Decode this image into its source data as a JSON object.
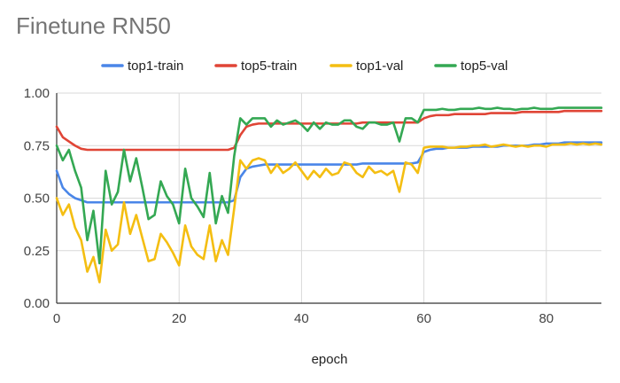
{
  "chart_data": {
    "type": "line",
    "title": "Finetune RN50",
    "xlabel": "epoch",
    "ylabel": "",
    "xlim": [
      0,
      89
    ],
    "ylim": [
      0,
      1
    ],
    "x_ticks": [
      0,
      20,
      40,
      60,
      80
    ],
    "x_tick_labels": [
      "0",
      "20",
      "40",
      "60",
      "80"
    ],
    "y_ticks": [
      0,
      0.25,
      0.5,
      0.75,
      1
    ],
    "y_tick_labels": [
      "0.00",
      "0.25",
      "0.50",
      "0.75",
      "1.00"
    ],
    "grid": true,
    "legend": "top",
    "series": [
      {
        "name": "top1-train",
        "color": "#4a86e8",
        "values": [
          0.63,
          0.55,
          0.52,
          0.5,
          0.49,
          0.48,
          0.48,
          0.48,
          0.48,
          0.48,
          0.48,
          0.48,
          0.48,
          0.48,
          0.48,
          0.48,
          0.48,
          0.48,
          0.48,
          0.48,
          0.48,
          0.48,
          0.48,
          0.48,
          0.48,
          0.48,
          0.48,
          0.48,
          0.48,
          0.49,
          0.6,
          0.64,
          0.65,
          0.655,
          0.66,
          0.66,
          0.66,
          0.66,
          0.66,
          0.66,
          0.66,
          0.66,
          0.66,
          0.66,
          0.66,
          0.66,
          0.66,
          0.66,
          0.66,
          0.66,
          0.665,
          0.665,
          0.665,
          0.665,
          0.665,
          0.665,
          0.665,
          0.665,
          0.665,
          0.67,
          0.72,
          0.73,
          0.735,
          0.735,
          0.74,
          0.74,
          0.74,
          0.74,
          0.745,
          0.745,
          0.745,
          0.745,
          0.745,
          0.75,
          0.75,
          0.75,
          0.75,
          0.75,
          0.755,
          0.755,
          0.76,
          0.76,
          0.76,
          0.765,
          0.765,
          0.765,
          0.765,
          0.765,
          0.765,
          0.765
        ]
      },
      {
        "name": "top5-train",
        "color": "#e04536",
        "values": [
          0.84,
          0.79,
          0.77,
          0.75,
          0.735,
          0.73,
          0.73,
          0.73,
          0.73,
          0.73,
          0.73,
          0.73,
          0.73,
          0.73,
          0.73,
          0.73,
          0.73,
          0.73,
          0.73,
          0.73,
          0.73,
          0.73,
          0.73,
          0.73,
          0.73,
          0.73,
          0.73,
          0.73,
          0.73,
          0.74,
          0.8,
          0.84,
          0.85,
          0.855,
          0.855,
          0.855,
          0.855,
          0.855,
          0.855,
          0.855,
          0.855,
          0.855,
          0.855,
          0.855,
          0.855,
          0.855,
          0.855,
          0.855,
          0.855,
          0.855,
          0.86,
          0.86,
          0.86,
          0.86,
          0.86,
          0.86,
          0.86,
          0.86,
          0.86,
          0.86,
          0.88,
          0.89,
          0.895,
          0.895,
          0.895,
          0.9,
          0.9,
          0.9,
          0.9,
          0.9,
          0.9,
          0.905,
          0.905,
          0.905,
          0.905,
          0.905,
          0.91,
          0.91,
          0.91,
          0.91,
          0.91,
          0.91,
          0.91,
          0.915,
          0.915,
          0.915,
          0.915,
          0.915,
          0.915,
          0.915
        ]
      },
      {
        "name": "top1-val",
        "color": "#f4be12",
        "values": [
          0.5,
          0.42,
          0.47,
          0.36,
          0.3,
          0.15,
          0.22,
          0.1,
          0.35,
          0.25,
          0.28,
          0.48,
          0.33,
          0.42,
          0.31,
          0.2,
          0.21,
          0.33,
          0.29,
          0.24,
          0.18,
          0.37,
          0.27,
          0.23,
          0.21,
          0.37,
          0.2,
          0.3,
          0.23,
          0.45,
          0.68,
          0.64,
          0.68,
          0.69,
          0.68,
          0.62,
          0.66,
          0.62,
          0.64,
          0.67,
          0.63,
          0.59,
          0.63,
          0.6,
          0.64,
          0.61,
          0.62,
          0.67,
          0.66,
          0.62,
          0.6,
          0.65,
          0.62,
          0.63,
          0.61,
          0.63,
          0.53,
          0.67,
          0.66,
          0.62,
          0.74,
          0.745,
          0.745,
          0.745,
          0.74,
          0.74,
          0.745,
          0.745,
          0.75,
          0.75,
          0.755,
          0.745,
          0.75,
          0.755,
          0.75,
          0.745,
          0.75,
          0.745,
          0.75,
          0.75,
          0.745,
          0.755,
          0.755,
          0.755,
          0.76,
          0.755,
          0.76,
          0.755,
          0.76,
          0.755
        ]
      },
      {
        "name": "top5-val",
        "color": "#34a853",
        "values": [
          0.75,
          0.68,
          0.73,
          0.63,
          0.55,
          0.3,
          0.44,
          0.19,
          0.63,
          0.47,
          0.53,
          0.73,
          0.58,
          0.69,
          0.55,
          0.4,
          0.42,
          0.58,
          0.51,
          0.47,
          0.38,
          0.64,
          0.5,
          0.46,
          0.41,
          0.62,
          0.38,
          0.51,
          0.43,
          0.7,
          0.88,
          0.85,
          0.88,
          0.88,
          0.88,
          0.84,
          0.87,
          0.85,
          0.86,
          0.87,
          0.85,
          0.82,
          0.86,
          0.83,
          0.86,
          0.85,
          0.85,
          0.87,
          0.87,
          0.84,
          0.83,
          0.86,
          0.86,
          0.85,
          0.85,
          0.86,
          0.77,
          0.88,
          0.88,
          0.86,
          0.92,
          0.92,
          0.92,
          0.925,
          0.92,
          0.92,
          0.925,
          0.925,
          0.925,
          0.93,
          0.925,
          0.925,
          0.93,
          0.925,
          0.925,
          0.92,
          0.925,
          0.925,
          0.93,
          0.925,
          0.925,
          0.925,
          0.93,
          0.93,
          0.93,
          0.93,
          0.93,
          0.93,
          0.93,
          0.93
        ]
      }
    ]
  }
}
